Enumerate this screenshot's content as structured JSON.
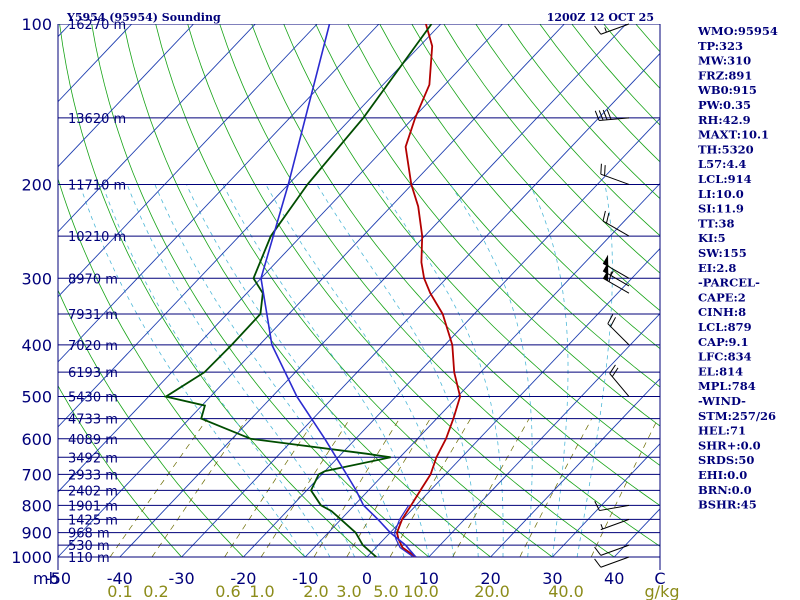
{
  "header": {
    "station": "Y5954 (95954) Sounding",
    "time": "1200Z 12 OCT 25"
  },
  "chart_data": {
    "type": "line",
    "chart_kind": "skew-T log-P sounding",
    "y_axis": {
      "quantity": "pressure",
      "scale": "log",
      "range": [
        1000,
        100
      ],
      "unit_label": "mb"
    },
    "x_axis": {
      "quantity": "temperature",
      "range": [
        -50,
        50
      ],
      "ticks": [
        "-50",
        "-40",
        "-30",
        "-20",
        "-10",
        "0",
        "10",
        "20",
        "30",
        "40"
      ]
    },
    "mixing_ratio_ticks": [
      "0.1",
      "0.2",
      "0.6",
      "1.0",
      "2.0",
      "3.0",
      "5.0",
      "10.0",
      "20.0",
      "40.0"
    ],
    "mixing_ratio_unit": "g/kg",
    "celsius_unit": "C",
    "pressure_levels": [
      {
        "p": 100,
        "label": "100",
        "height": "16270 m"
      },
      {
        "p": 150,
        "height": "13620 m"
      },
      {
        "p": 200,
        "label": "200",
        "height": "11710 m"
      },
      {
        "p": 250,
        "height": "10210 m"
      },
      {
        "p": 300,
        "label": "300",
        "height": "8970 m"
      },
      {
        "p": 350,
        "height": "7931 m"
      },
      {
        "p": 400,
        "label": "400",
        "height": "7020 m"
      },
      {
        "p": 450,
        "height": "6193 m"
      },
      {
        "p": 500,
        "label": "500",
        "height": "5430 m"
      },
      {
        "p": 550,
        "height": "4733 m"
      },
      {
        "p": 600,
        "label": "600",
        "height": "4089 m"
      },
      {
        "p": 650,
        "height": "3492 m"
      },
      {
        "p": 700,
        "label": "700",
        "height": "2933 m"
      },
      {
        "p": 750,
        "height": "2402 m"
      },
      {
        "p": 800,
        "label": "800",
        "height": "1901 m"
      },
      {
        "p": 850,
        "height": "1425 m"
      },
      {
        "p": 900,
        "label": "900",
        "height": "968 m"
      },
      {
        "p": 950,
        "height": "530 m"
      },
      {
        "p": 1000,
        "label": "1000",
        "height": "110 m"
      }
    ],
    "series": [
      {
        "role": "temperature",
        "color": "#b30000",
        "points": [
          [
            1000,
            7.9
          ],
          [
            960,
            4.3
          ],
          [
            925,
            2.3
          ],
          [
            900,
            1.1
          ],
          [
            850,
            -0.1
          ],
          [
            800,
            -0.8
          ],
          [
            750,
            -1.6
          ],
          [
            700,
            -2.4
          ],
          [
            650,
            -4.1
          ],
          [
            600,
            -5.4
          ],
          [
            550,
            -7.3
          ],
          [
            500,
            -9.6
          ],
          [
            450,
            -14.3
          ],
          [
            400,
            -18.8
          ],
          [
            350,
            -25.1
          ],
          [
            320,
            -30.3
          ],
          [
            300,
            -33.6
          ],
          [
            280,
            -36.5
          ],
          [
            250,
            -40.4
          ],
          [
            220,
            -45.6
          ],
          [
            200,
            -50.1
          ],
          [
            170,
            -56.8
          ],
          [
            150,
            -59.7
          ],
          [
            130,
            -62.5
          ],
          [
            110,
            -68.0
          ],
          [
            100,
            -72.4
          ]
        ]
      },
      {
        "role": "dewpoint",
        "color": "#004d00",
        "points": [
          [
            1000,
            1.5
          ],
          [
            950,
            -2.5
          ],
          [
            900,
            -5.6
          ],
          [
            850,
            -10.0
          ],
          [
            820,
            -12.8
          ],
          [
            800,
            -15.4
          ],
          [
            750,
            -19.3
          ],
          [
            700,
            -20.5
          ],
          [
            690,
            -20.0
          ],
          [
            650,
            -11.5
          ],
          [
            640,
            -16.0
          ],
          [
            600,
            -37.0
          ],
          [
            550,
            -48.1
          ],
          [
            520,
            -49.5
          ],
          [
            500,
            -57.2
          ],
          [
            450,
            -54.7
          ],
          [
            400,
            -54.5
          ],
          [
            350,
            -54.6
          ],
          [
            320,
            -57.4
          ],
          [
            300,
            -61.2
          ],
          [
            250,
            -64.9
          ],
          [
            200,
            -66.9
          ],
          [
            150,
            -68.1
          ],
          [
            100,
            -71.5
          ]
        ]
      },
      {
        "role": "parcel",
        "color": "#2b2bd0",
        "points": [
          [
            1000,
            7.9
          ],
          [
            950,
            4.4
          ],
          [
            900,
            0.0
          ],
          [
            850,
            -4.0
          ],
          [
            800,
            -8.5
          ],
          [
            750,
            -12.0
          ],
          [
            700,
            -16.0
          ],
          [
            600,
            -25.0
          ],
          [
            500,
            -36.0
          ],
          [
            400,
            -48.0
          ],
          [
            300,
            -60.0
          ],
          [
            200,
            -70.0
          ],
          [
            100,
            -88.0
          ]
        ]
      }
    ],
    "wind_barbs": [
      {
        "p": 100,
        "dir": 250,
        "kt": 15
      },
      {
        "p": 150,
        "dir": 265,
        "kt": 40
      },
      {
        "p": 200,
        "dir": 290,
        "kt": 20
      },
      {
        "p": 250,
        "dir": 300,
        "kt": 20
      },
      {
        "p": 300,
        "dir": 300,
        "kt": 50
      },
      {
        "p": 310,
        "dir": 300,
        "kt": 55
      },
      {
        "p": 320,
        "dir": 300,
        "kt": 60
      },
      {
        "p": 400,
        "dir": 315,
        "kt": 20
      },
      {
        "p": 500,
        "dir": 320,
        "kt": 20
      },
      {
        "p": 800,
        "dir": 260,
        "kt": 10
      },
      {
        "p": 850,
        "dir": 250,
        "kt": 5
      },
      {
        "p": 950,
        "dir": 250,
        "kt": 10
      },
      {
        "p": 1000,
        "dir": 250,
        "kt": 10
      }
    ]
  },
  "indices": [
    "WMO:95954",
    "TP:323",
    "MW:310",
    "FRZ:891",
    "WB0:915",
    "PW:0.35",
    "RH:42.9",
    "MAXT:10.1",
    "TH:5320",
    "L57:4.4",
    "LCL:914",
    "LI:10.0",
    "SI:11.9",
    "TT:38",
    "KI:5",
    "SW:155",
    "EI:2.8",
    "-PARCEL-",
    "CAPE:2",
    "CINH:8",
    "LCL:879",
    "CAP:9.1",
    "LFC:834",
    "EL:814",
    "MPL:784",
    "-WIND-",
    "STM:257/26",
    "HEL:71",
    "SHR+:0.0",
    "SRDS:50",
    "EHI:0.0",
    "BRN:0.0",
    "BSHR:45"
  ],
  "colors": {
    "isobar": "#00007a",
    "isotherm": "#1f3fb0",
    "dry_adiabat": "#17a317",
    "moist_adiabat": "#4fb8d8",
    "mixing_ratio": "#6b6b00",
    "text": "#00007a"
  }
}
